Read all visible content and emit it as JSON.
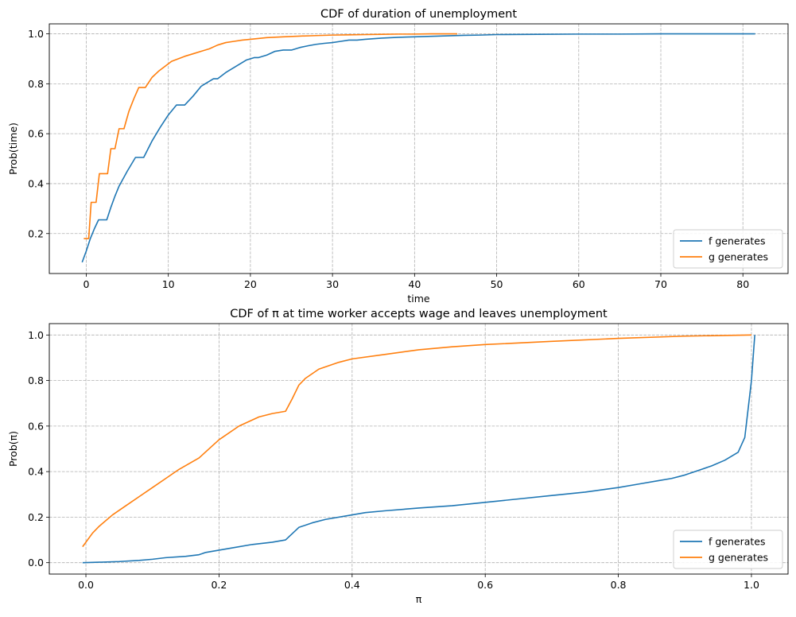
{
  "chart_data": [
    {
      "type": "line",
      "title": "CDF of duration of unemployment",
      "xlabel": "time",
      "ylabel": "Prob(time)",
      "xlim": [
        -4.5,
        85.5
      ],
      "ylim": [
        0.04,
        1.04
      ],
      "xticks": [
        0,
        10,
        20,
        30,
        40,
        50,
        60,
        70,
        80
      ],
      "yticks": [
        0.2,
        0.4,
        0.6,
        0.8,
        1.0
      ],
      "grid": true,
      "legend": "lower-right",
      "series": [
        {
          "name": "f generates",
          "color": "#1f77b4",
          "x": [
            -0.5,
            0,
            0.5,
            1,
            1.5,
            2,
            2.5,
            3,
            3.5,
            4,
            5,
            6,
            6.5,
            7,
            8,
            9,
            10,
            11,
            11.5,
            12,
            13,
            14,
            14.5,
            15.5,
            16,
            17,
            18,
            19,
            19.5,
            20.5,
            21,
            22,
            23,
            24,
            25,
            26,
            27,
            28,
            29,
            30,
            31,
            32,
            33,
            34,
            36,
            38,
            40,
            42,
            44,
            46,
            48,
            50,
            55,
            60,
            65,
            70,
            75,
            81.5
          ],
          "y": [
            0.085,
            0.13,
            0.18,
            0.22,
            0.255,
            0.255,
            0.255,
            0.305,
            0.35,
            0.39,
            0.45,
            0.505,
            0.505,
            0.505,
            0.57,
            0.625,
            0.675,
            0.715,
            0.715,
            0.715,
            0.75,
            0.79,
            0.8,
            0.82,
            0.82,
            0.845,
            0.865,
            0.885,
            0.895,
            0.905,
            0.905,
            0.915,
            0.93,
            0.935,
            0.935,
            0.945,
            0.952,
            0.958,
            0.962,
            0.965,
            0.97,
            0.975,
            0.975,
            0.978,
            0.983,
            0.986,
            0.988,
            0.99,
            0.992,
            0.994,
            0.995,
            0.997,
            0.998,
            0.999,
            0.999,
            1.0,
            1.0,
            1.0
          ]
        },
        {
          "name": "g generates",
          "color": "#ff7f0e",
          "x": [
            -0.3,
            0.3,
            0.6,
            0.8,
            1.2,
            1.6,
            2,
            2.3,
            2.6,
            3,
            3.5,
            4,
            4.6,
            5.2,
            5.8,
            6.4,
            7.2,
            8,
            8.8,
            9.6,
            10.4,
            11.2,
            12,
            13,
            14,
            15,
            16,
            17,
            18,
            19,
            20,
            22,
            24,
            26,
            28,
            30,
            32,
            34,
            36,
            38,
            40,
            42,
            44,
            45.2
          ],
          "y": [
            0.18,
            0.18,
            0.325,
            0.325,
            0.325,
            0.44,
            0.44,
            0.44,
            0.44,
            0.54,
            0.54,
            0.62,
            0.62,
            0.69,
            0.74,
            0.785,
            0.785,
            0.825,
            0.85,
            0.87,
            0.89,
            0.9,
            0.91,
            0.92,
            0.93,
            0.94,
            0.955,
            0.965,
            0.97,
            0.975,
            0.978,
            0.985,
            0.988,
            0.991,
            0.993,
            0.995,
            0.996,
            0.997,
            0.998,
            0.999,
            0.999,
            1.0,
            1.0,
            1.0
          ]
        }
      ]
    },
    {
      "type": "line",
      "title": "CDF of π at time worker accepts wage and leaves unemployment",
      "xlabel": "π",
      "ylabel": "Prob(π)",
      "xlim": [
        -0.055,
        1.055
      ],
      "ylim": [
        -0.05,
        1.05
      ],
      "xticks": [
        0.0,
        0.2,
        0.4,
        0.6,
        0.8,
        1.0
      ],
      "yticks": [
        0.0,
        0.2,
        0.4,
        0.6,
        0.8,
        1.0
      ],
      "grid": true,
      "legend": "lower-right",
      "series": [
        {
          "name": "f generates",
          "color": "#1f77b4",
          "x": [
            -0.005,
            0.02,
            0.05,
            0.08,
            0.1,
            0.12,
            0.15,
            0.17,
            0.18,
            0.2,
            0.22,
            0.25,
            0.28,
            0.3,
            0.32,
            0.34,
            0.36,
            0.4,
            0.42,
            0.45,
            0.5,
            0.55,
            0.6,
            0.65,
            0.7,
            0.75,
            0.8,
            0.83,
            0.86,
            0.88,
            0.9,
            0.92,
            0.94,
            0.96,
            0.98,
            0.99,
            1.0,
            1.005
          ],
          "y": [
            0.0,
            0.002,
            0.005,
            0.01,
            0.015,
            0.022,
            0.028,
            0.035,
            0.045,
            0.055,
            0.065,
            0.08,
            0.09,
            0.1,
            0.155,
            0.175,
            0.19,
            0.21,
            0.22,
            0.228,
            0.24,
            0.25,
            0.265,
            0.28,
            0.295,
            0.31,
            0.33,
            0.345,
            0.36,
            0.37,
            0.385,
            0.405,
            0.425,
            0.45,
            0.485,
            0.55,
            0.8,
            1.0
          ],
          "name_short": "f"
        },
        {
          "name": "g generates",
          "color": "#ff7f0e",
          "x": [
            -0.005,
            0.01,
            0.02,
            0.04,
            0.06,
            0.08,
            0.1,
            0.12,
            0.14,
            0.17,
            0.2,
            0.23,
            0.26,
            0.28,
            0.3,
            0.31,
            0.32,
            0.33,
            0.35,
            0.38,
            0.4,
            0.45,
            0.5,
            0.55,
            0.6,
            0.7,
            0.8,
            0.9,
            1.0
          ],
          "y": [
            0.07,
            0.13,
            0.16,
            0.21,
            0.25,
            0.29,
            0.33,
            0.37,
            0.41,
            0.46,
            0.54,
            0.6,
            0.64,
            0.655,
            0.665,
            0.72,
            0.78,
            0.81,
            0.85,
            0.88,
            0.895,
            0.915,
            0.935,
            0.948,
            0.958,
            0.972,
            0.985,
            0.995,
            1.0
          ]
        }
      ]
    }
  ]
}
